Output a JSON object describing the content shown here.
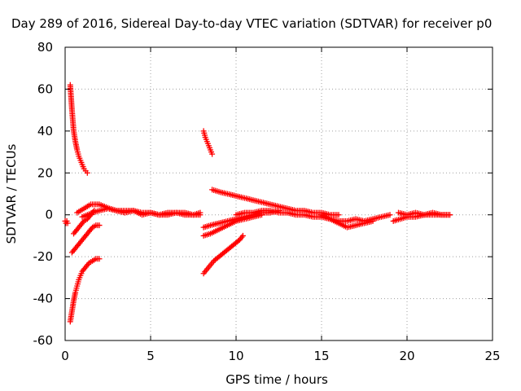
{
  "chart_data": {
    "type": "scatter",
    "title": "Day 289 of 2016, Sidereal Day-to-day VTEC variation (SDTVAR) for receiver p0",
    "xlabel": "GPS time / hours",
    "ylabel": "SDTVAR / TECUs",
    "xlim": [
      0,
      25
    ],
    "ylim": [
      -60,
      80
    ],
    "xticks": [
      0,
      5,
      10,
      15,
      20,
      25
    ],
    "yticks": [
      -60,
      -40,
      -20,
      0,
      20,
      40,
      60,
      80
    ],
    "grid": true,
    "marker": "plus",
    "color": "#ff0000",
    "series": [
      {
        "x": [
          0.0,
          0.05,
          0.1,
          0.15
        ],
        "y": [
          -3,
          -4,
          -3,
          -4
        ]
      },
      {
        "x": [
          0.3,
          0.4,
          0.5,
          0.6,
          0.7,
          0.8,
          0.9,
          1.0,
          1.1,
          1.2,
          1.3
        ],
        "y": [
          62,
          50,
          40,
          35,
          31,
          28,
          26,
          24,
          22,
          21,
          20
        ]
      },
      {
        "x": [
          0.3,
          0.4,
          0.5,
          0.6,
          0.7,
          0.8,
          0.9,
          1.0,
          1.2,
          1.4,
          1.6,
          1.8,
          2.0
        ],
        "y": [
          -51,
          -46,
          -41,
          -37,
          -34,
          -31,
          -29,
          -27,
          -25,
          -23,
          -22,
          -21,
          -21
        ]
      },
      {
        "x": [
          0.4,
          0.6,
          0.8,
          1.0,
          1.2,
          1.4,
          1.6,
          1.8,
          2.0
        ],
        "y": [
          -18,
          -16,
          -14,
          -12,
          -10,
          -8,
          -6,
          -5,
          -5
        ]
      },
      {
        "x": [
          0.5,
          0.7,
          0.9,
          1.1,
          1.3,
          1.5,
          1.7
        ],
        "y": [
          -9,
          -7,
          -5,
          -3,
          -2,
          0,
          2
        ]
      },
      {
        "x": [
          0.7,
          0.9,
          1.1,
          1.3,
          1.5,
          1.7,
          2.0,
          2.3,
          2.6,
          3.0,
          3.5,
          4.0,
          4.5,
          5.0,
          5.5,
          6.0,
          6.5,
          7.0,
          7.5,
          7.9
        ],
        "y": [
          1,
          2,
          3,
          4,
          5,
          5,
          5,
          4,
          3,
          2,
          2,
          2,
          1,
          1,
          0,
          1,
          1,
          1,
          0,
          1
        ]
      },
      {
        "x": [
          1.0,
          1.3,
          1.6,
          2.0,
          2.5,
          3.0,
          3.5,
          4.0,
          4.5,
          5.0,
          5.5,
          6.0,
          6.5,
          7.0,
          7.5,
          7.9
        ],
        "y": [
          -1,
          0,
          1,
          2,
          3,
          2,
          1,
          2,
          0,
          1,
          0,
          0,
          1,
          0,
          0,
          0
        ]
      },
      {
        "x": [
          8.1,
          8.2,
          8.3,
          8.4,
          8.5,
          8.6
        ],
        "y": [
          40,
          37,
          35,
          33,
          31,
          29
        ]
      },
      {
        "x": [
          8.1,
          8.4,
          8.7,
          9.0,
          9.3,
          9.6,
          9.9,
          10.2,
          10.4
        ],
        "y": [
          -28,
          -25,
          -22,
          -20,
          -18,
          -16,
          -14,
          -12,
          -10
        ]
      },
      {
        "x": [
          8.1,
          8.5,
          9.0,
          9.5,
          10.0,
          10.5,
          11.0,
          11.5
        ],
        "y": [
          -10,
          -9,
          -7,
          -5,
          -3,
          -2,
          -1,
          0
        ]
      },
      {
        "x": [
          8.1,
          8.5,
          9.0,
          9.5,
          10.0,
          10.5,
          11.0,
          11.5,
          12.0,
          12.5
        ],
        "y": [
          -6,
          -5,
          -4,
          -3,
          -2,
          -1,
          0,
          1,
          1,
          2
        ]
      },
      {
        "x": [
          8.6,
          9.0,
          9.5,
          10.0,
          10.5,
          11.0,
          11.5,
          12.0,
          12.5,
          13.0,
          13.5,
          14.0,
          14.5,
          15.0,
          15.5,
          16.0
        ],
        "y": [
          12,
          11,
          10,
          9,
          8,
          7,
          6,
          5,
          4,
          3,
          2,
          2,
          1,
          1,
          0,
          0
        ]
      },
      {
        "x": [
          10.0,
          10.5,
          11.0,
          11.5,
          12.0,
          12.5,
          13.0,
          13.5,
          14.0,
          14.5,
          15.0,
          15.5,
          16.0,
          16.5,
          17.0,
          17.5,
          18.0,
          18.5,
          19.0
        ],
        "y": [
          0,
          1,
          1,
          2,
          2,
          1,
          1,
          0,
          0,
          -1,
          -1,
          -2,
          -3,
          -3,
          -2,
          -3,
          -2,
          -1,
          0
        ]
      },
      {
        "x": [
          15.0,
          15.5,
          16.0,
          16.5,
          17.0,
          17.5,
          18.0
        ],
        "y": [
          0,
          -2,
          -4,
          -6,
          -5,
          -4,
          -3
        ]
      },
      {
        "x": [
          19.2,
          19.6,
          20.0,
          20.5,
          21.0,
          21.5,
          22.0,
          22.5
        ],
        "y": [
          -3,
          -2,
          -1,
          -1,
          0,
          0,
          0,
          0
        ]
      },
      {
        "x": [
          19.5,
          20.0,
          20.5,
          21.0,
          21.5,
          22.0,
          22.5
        ],
        "y": [
          1,
          0,
          1,
          0,
          1,
          0,
          0
        ]
      }
    ]
  }
}
